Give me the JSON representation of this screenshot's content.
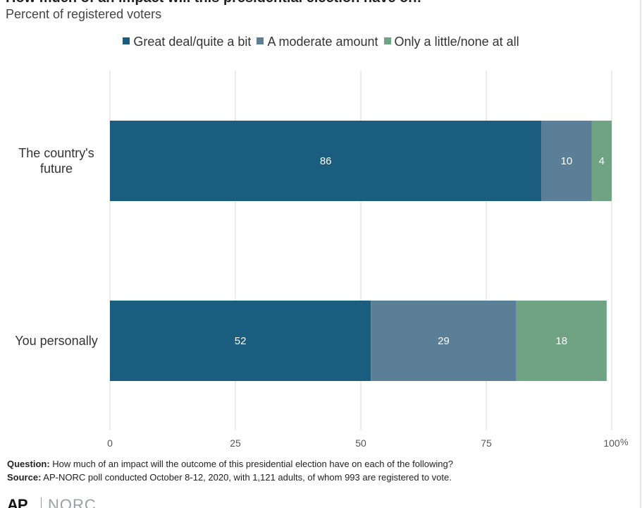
{
  "chart_data": {
    "type": "bar",
    "orientation": "horizontal",
    "stacked": true,
    "title": "How much of an impact will this presidential election have on:",
    "subtitle": "Percent of registered voters",
    "categories": [
      "The country's future",
      "You personally"
    ],
    "category_lines": [
      [
        "The country's",
        "future"
      ],
      [
        "You personally"
      ]
    ],
    "series": [
      {
        "name": "Great deal/quite a bit",
        "values": [
          86,
          52
        ],
        "color": "#1a5d7e"
      },
      {
        "name": "A moderate amount",
        "values": [
          10,
          29
        ],
        "color": "#5b7f96"
      },
      {
        "name": "Only a little/none at all",
        "values": [
          4,
          18
        ],
        "color": "#6fa384"
      }
    ],
    "xlim": [
      0,
      100
    ],
    "xticks": [
      "0",
      "25",
      "50",
      "75",
      "100"
    ],
    "x_unit": "%",
    "grid": true,
    "legend_position": "top"
  },
  "footer": {
    "question_label": "Question:",
    "question_text": " How much of an impact will the outcome of this presidential election have on each of the following?",
    "source_label": "Source:",
    "source_text": " AP-NORC poll conducted October 8-12, 2020, with 1,121 adults, of whom 993 are registered to vote."
  },
  "logos": {
    "ap": "AP",
    "norc": "NORC"
  }
}
